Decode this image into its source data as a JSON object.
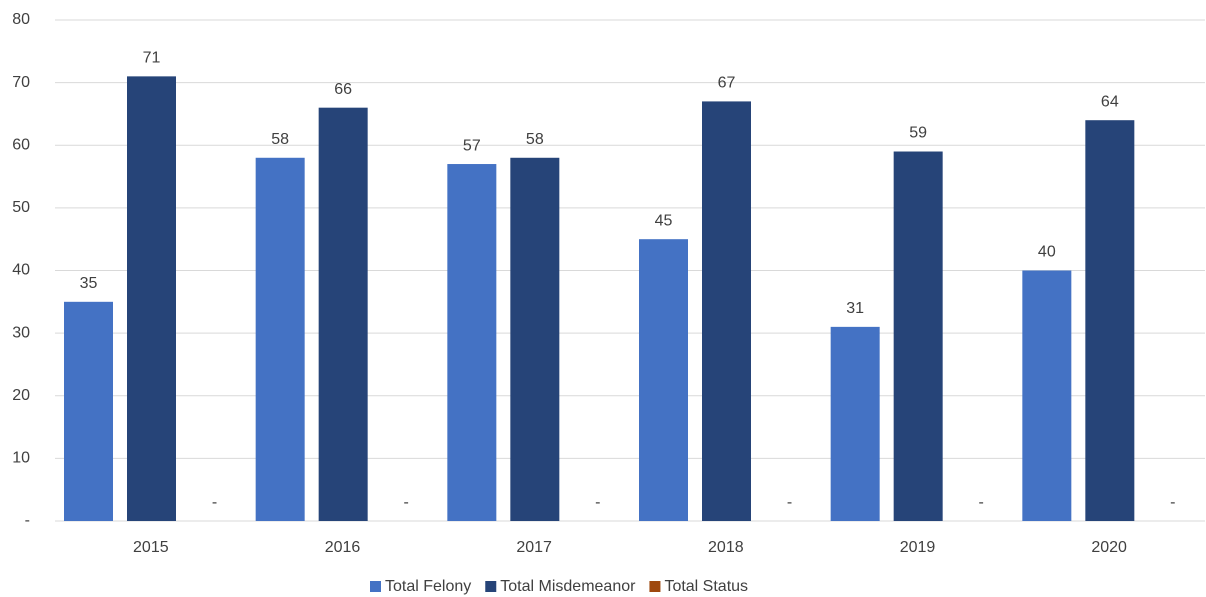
{
  "chart_data": {
    "type": "bar",
    "categories": [
      "2015",
      "2016",
      "2017",
      "2018",
      "2019",
      "2020"
    ],
    "series": [
      {
        "name": "Total Felony",
        "color": "#4472c4",
        "values": [
          35,
          58,
          57,
          45,
          31,
          40
        ]
      },
      {
        "name": "Total Misdemeanor",
        "color": "#264478",
        "values": [
          71,
          66,
          58,
          67,
          59,
          64
        ]
      },
      {
        "name": "Total Status",
        "color": "#9e480e",
        "values": [
          0,
          0,
          0,
          0,
          0,
          0
        ],
        "value_labels": [
          "-",
          "-",
          "-",
          "-",
          "-",
          "-"
        ]
      }
    ],
    "ylim": [
      0,
      80
    ],
    "yticks": [
      {
        "value": 0,
        "label": "-"
      },
      10,
      20,
      30,
      40,
      50,
      60,
      70,
      80
    ],
    "grid": true,
    "legend": "bottom"
  }
}
